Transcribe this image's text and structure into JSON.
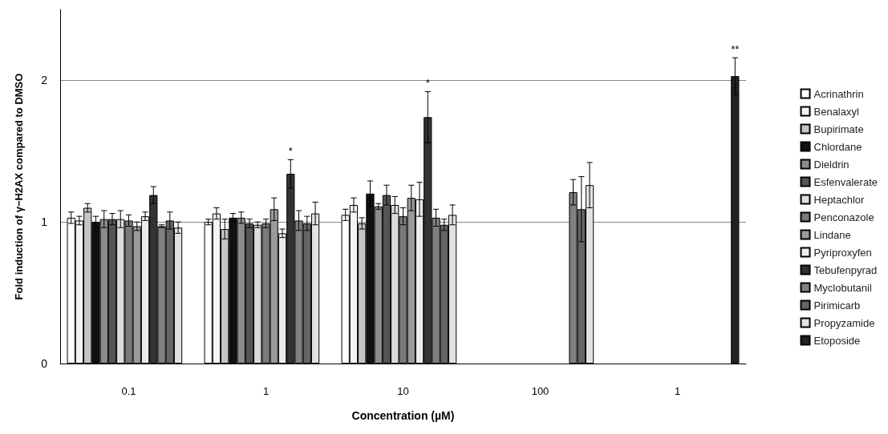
{
  "chart_data": {
    "type": "bar",
    "xlabel": "Concentration (µM)",
    "ylabel": "Fold induction of γ−H2AX compared to DMSO",
    "categories": [
      "0.1",
      "1",
      "10",
      "100",
      "1"
    ],
    "ylim": [
      0,
      2.5
    ],
    "yticks": [
      0,
      1,
      2
    ],
    "grid": "y",
    "legend": "right",
    "series": [
      {
        "name": "Acrinathrin",
        "color": "#ffffff",
        "values": [
          1.03,
          1.0,
          1.05,
          null,
          null
        ],
        "errors": [
          0.04,
          0.02,
          0.04,
          null,
          null
        ]
      },
      {
        "name": "Benalaxyl",
        "color": "#f4f4f4",
        "values": [
          1.01,
          1.06,
          1.12,
          null,
          null
        ],
        "errors": [
          0.03,
          0.04,
          0.05,
          null,
          null
        ]
      },
      {
        "name": "Bupirimate",
        "color": "#c4c4c4",
        "values": [
          1.1,
          0.95,
          0.99,
          null,
          null
        ],
        "errors": [
          0.03,
          0.07,
          0.04,
          null,
          null
        ]
      },
      {
        "name": "Chlordane",
        "color": "#111111",
        "values": [
          1.0,
          1.03,
          1.2,
          null,
          null
        ],
        "errors": [
          0.04,
          0.03,
          0.09,
          null,
          null
        ]
      },
      {
        "name": "Dieldrin",
        "color": "#8c8c8c",
        "values": [
          1.02,
          1.03,
          1.11,
          null,
          null
        ],
        "errors": [
          0.06,
          0.04,
          0.02,
          null,
          null
        ]
      },
      {
        "name": "Esfenvalerate",
        "color": "#555555",
        "values": [
          1.02,
          0.99,
          1.19,
          null,
          null
        ],
        "errors": [
          0.04,
          0.03,
          0.07,
          null,
          null
        ]
      },
      {
        "name": "Heptachlor",
        "color": "#dcdcdc",
        "values": [
          1.02,
          0.98,
          1.12,
          null,
          null
        ],
        "errors": [
          0.06,
          0.02,
          0.06,
          null,
          null
        ]
      },
      {
        "name": "Penconazole",
        "color": "#7a7a7a",
        "values": [
          1.01,
          0.99,
          1.04,
          null,
          null
        ],
        "errors": [
          0.04,
          0.03,
          0.06,
          null,
          null
        ]
      },
      {
        "name": "Lindane",
        "color": "#9a9a9a",
        "values": [
          0.97,
          1.09,
          1.17,
          null,
          null
        ],
        "errors": [
          0.03,
          0.08,
          0.09,
          null,
          null
        ]
      },
      {
        "name": "Pyriproxyfen",
        "color": "#ececec",
        "values": [
          1.04,
          0.92,
          1.16,
          null,
          null
        ],
        "errors": [
          0.03,
          0.03,
          0.12,
          null,
          null
        ]
      },
      {
        "name": "Tebufenpyrad",
        "color": "#333333",
        "values": [
          1.19,
          1.34,
          1.74,
          null,
          null
        ],
        "errors": [
          0.06,
          0.1,
          0.18,
          null,
          null
        ]
      },
      {
        "name": "Myclobutanil",
        "color": "#808080",
        "values": [
          0.97,
          1.01,
          1.03,
          1.21,
          null
        ],
        "errors": [
          0.01,
          0.07,
          0.06,
          0.09,
          null
        ]
      },
      {
        "name": "Pirimicarb",
        "color": "#666666",
        "values": [
          1.01,
          0.99,
          0.98,
          1.09,
          null
        ],
        "errors": [
          0.06,
          0.05,
          0.04,
          0.23,
          null
        ]
      },
      {
        "name": "Propyzamide",
        "color": "#e2e2e2",
        "values": [
          0.96,
          1.06,
          1.05,
          1.26,
          null
        ],
        "errors": [
          0.04,
          0.08,
          0.07,
          0.16,
          null
        ]
      },
      {
        "name": "Etoposide",
        "color": "#222222",
        "values": [
          null,
          null,
          null,
          null,
          2.03
        ],
        "errors": [
          null,
          null,
          null,
          null,
          0.13
        ]
      }
    ],
    "annotations": [
      "*",
      "*",
      "**"
    ]
  }
}
